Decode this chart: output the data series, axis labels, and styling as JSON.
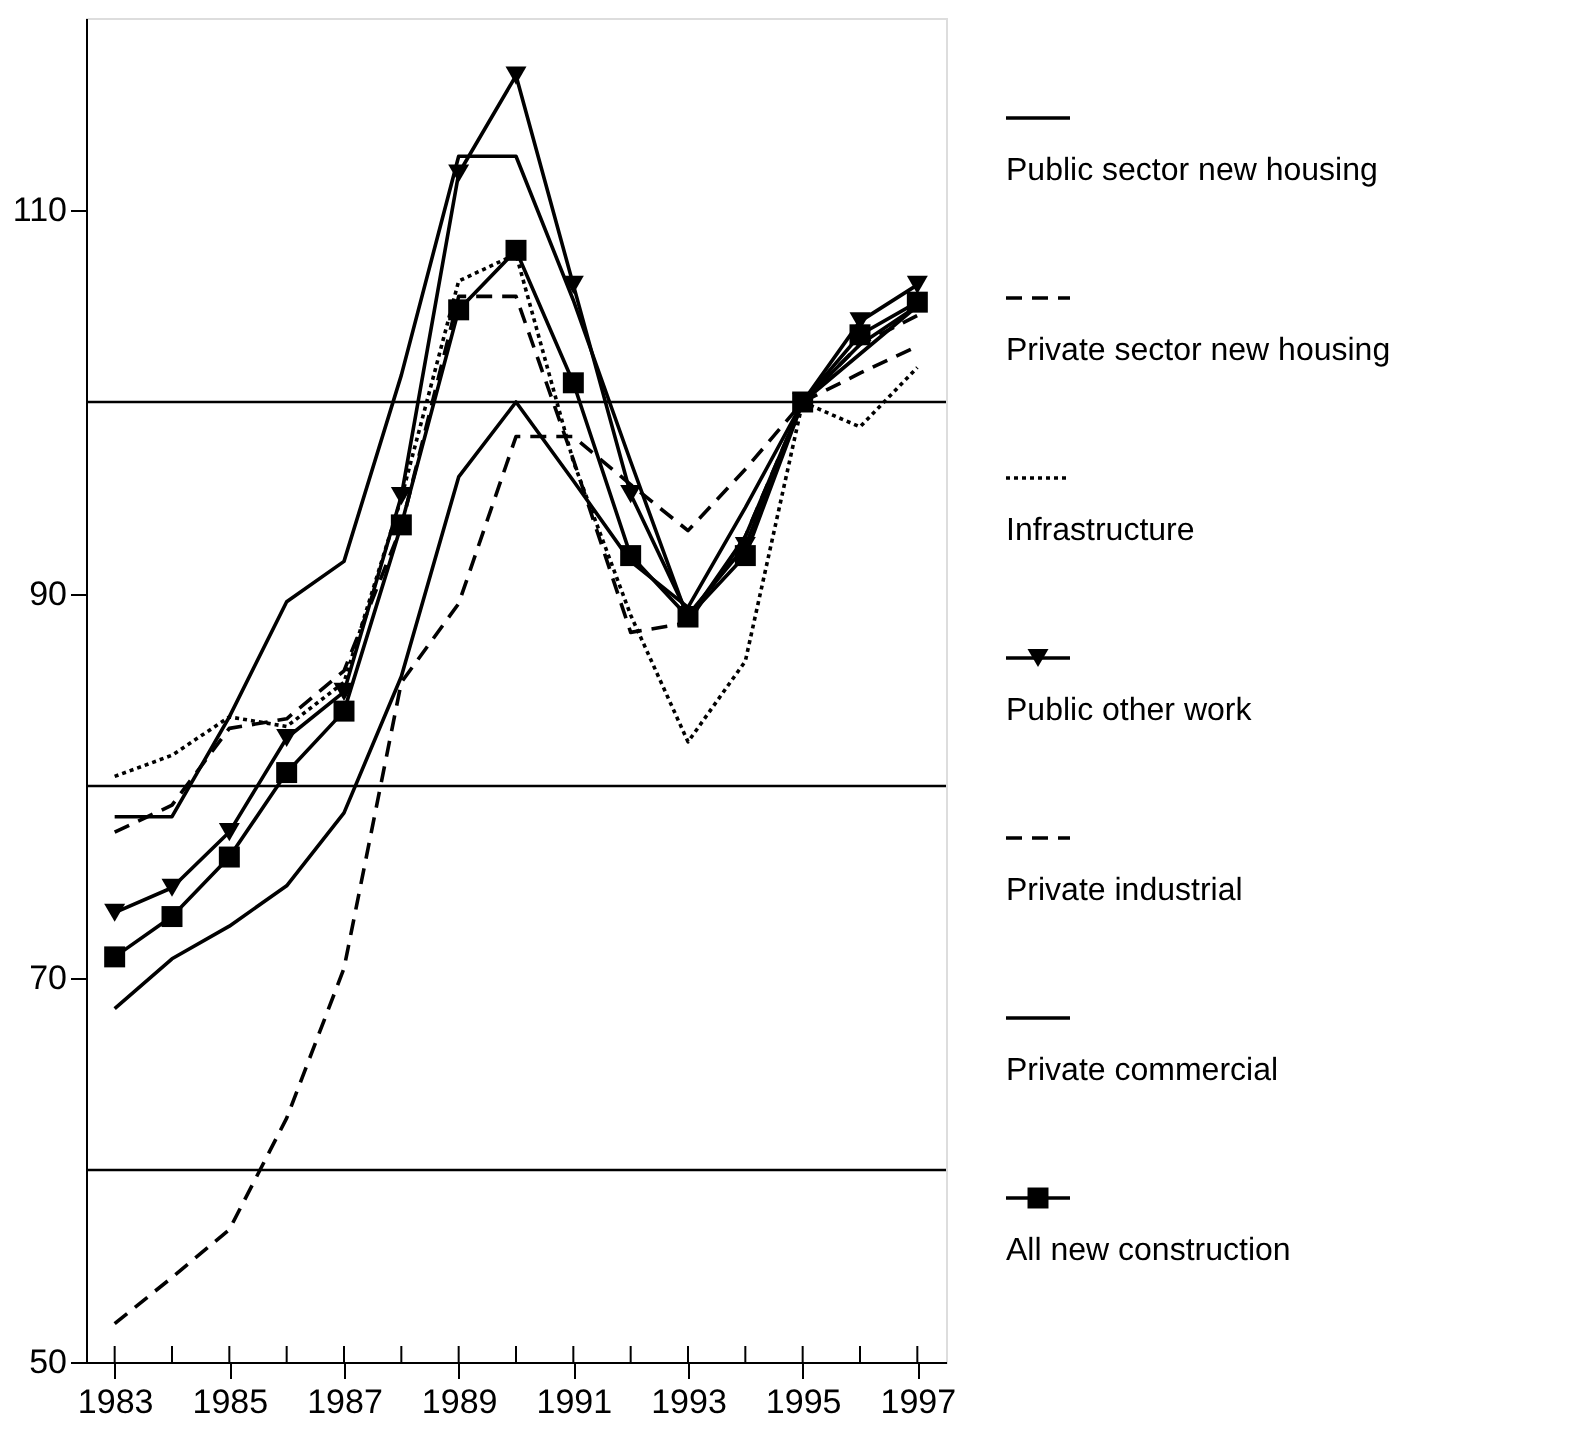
{
  "chart_data": {
    "type": "line",
    "x": [
      1983,
      1984,
      1985,
      1986,
      1987,
      1988,
      1989,
      1990,
      1991,
      1992,
      1993,
      1994,
      1995,
      1996,
      1997
    ],
    "xlim": [
      1982.5,
      1997.5
    ],
    "xticks": [
      1983,
      {
        "value": 1984,
        "label": null
      },
      1985,
      {
        "value": 1986,
        "label": null
      },
      1987,
      {
        "value": 1988,
        "label": null
      },
      1989,
      {
        "value": 1990,
        "label": null
      },
      1991,
      {
        "value": 1992,
        "label": null
      },
      1993,
      {
        "value": 1994,
        "label": null
      },
      1995,
      {
        "value": 1996,
        "label": null
      },
      1997
    ],
    "ylim": [
      50,
      120
    ],
    "yticks": [
      50,
      70,
      90,
      110
    ],
    "grid": false,
    "legend": "right",
    "ref_lines": [
      {
        "axis": "y",
        "value": 60,
        "color": "#000000"
      },
      {
        "axis": "y",
        "value": 80,
        "color": "#000000"
      },
      {
        "axis": "y",
        "value": 100,
        "color": "#000000"
      }
    ],
    "series": [
      {
        "name": "Public sector new housing",
        "color": "#000000",
        "line_style": "solid",
        "marker": "none",
        "values": [
          68.4,
          71.0,
          72.7,
          74.8,
          78.6,
          85.7,
          96.1,
          100.0,
          95.9,
          91.7,
          89.3,
          94.5,
          100.0,
          102.5,
          105.0
        ]
      },
      {
        "name": "Private sector new housing",
        "color": "#000000",
        "line_style": "dashed",
        "marker": "none",
        "values": [
          52.0,
          54.4,
          56.9,
          62.7,
          70.5,
          85.4,
          89.5,
          98.2,
          98.2,
          95.7,
          93.3,
          96.5,
          100.0,
          101.5,
          102.9
        ]
      },
      {
        "name": "Infrastructure",
        "color": "#000000",
        "line_style": "dotted",
        "marker": "none",
        "values": [
          80.5,
          81.6,
          83.6,
          83.1,
          85.4,
          95.0,
          106.3,
          107.7,
          96.9,
          88.9,
          82.3,
          86.5,
          100.0,
          98.7,
          101.8
        ]
      },
      {
        "name": "Public other work",
        "color": "#000000",
        "line_style": "solid",
        "marker": "triangle",
        "values": [
          73.4,
          74.7,
          77.6,
          82.5,
          84.9,
          95.1,
          111.9,
          117.0,
          106.1,
          95.2,
          88.9,
          92.5,
          100.0,
          104.2,
          106.1
        ]
      },
      {
        "name": "Private industrial",
        "color": "#000000",
        "line_style": "dashed",
        "marker": "none",
        "values": [
          77.6,
          79.0,
          83.0,
          83.5,
          86.0,
          93.5,
          105.5,
          105.5,
          97.0,
          88.0,
          88.5,
          93.0,
          100.0,
          103.0,
          104.5
        ]
      },
      {
        "name": "Private commercial",
        "color": "#000000",
        "line_style": "solid",
        "marker": "none",
        "values": [
          78.4,
          78.4,
          83.6,
          89.6,
          91.7,
          101.4,
          112.8,
          112.8,
          105.3,
          96.9,
          88.7,
          93.0,
          100.0,
          103.0,
          105.0
        ]
      },
      {
        "name": "All new construction",
        "color": "#000000",
        "line_style": "solid",
        "marker": "square",
        "values": [
          71.1,
          73.2,
          76.3,
          80.7,
          83.9,
          93.6,
          104.8,
          107.9,
          101.0,
          92.0,
          88.8,
          92.0,
          100.0,
          103.5,
          105.2
        ]
      }
    ]
  }
}
